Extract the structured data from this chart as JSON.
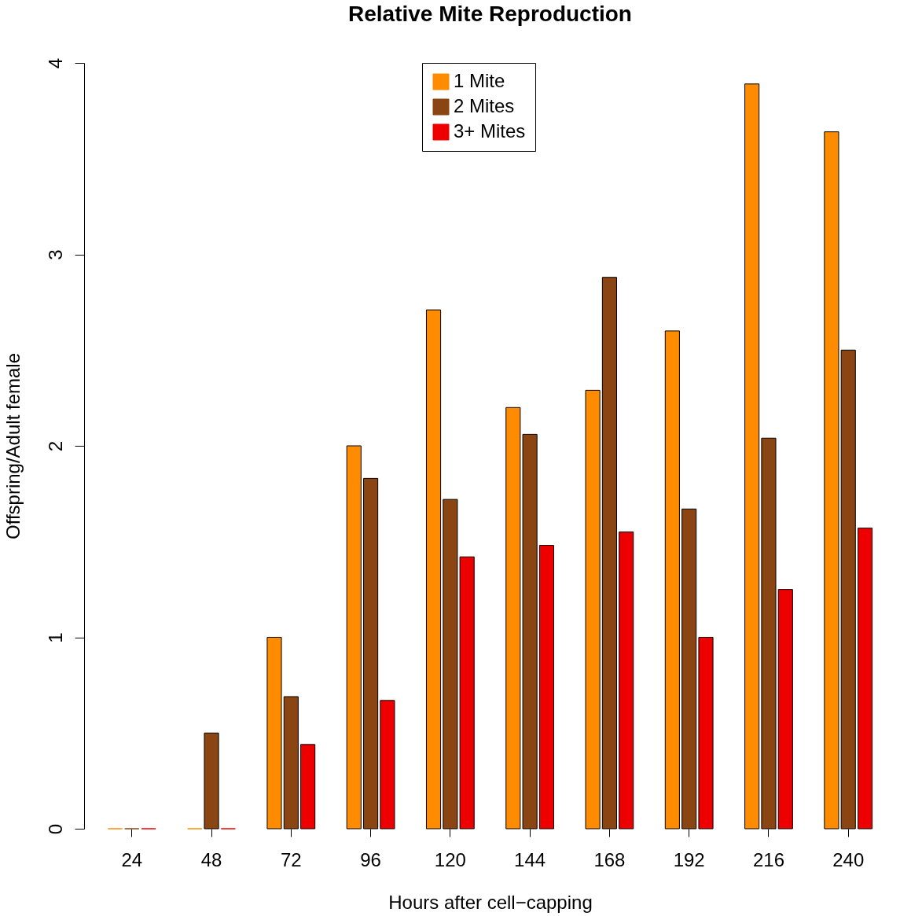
{
  "chart_data": {
    "type": "bar",
    "title": "Relative Mite Reproduction",
    "xlabel": "Hours after cell−capping",
    "ylabel": "Offspring/Adult female",
    "categories": [
      "24",
      "48",
      "72",
      "96",
      "120",
      "144",
      "168",
      "192",
      "216",
      "240"
    ],
    "series": [
      {
        "name": "1 Mite",
        "color": "#ff8c00",
        "values": [
          0,
          0,
          1.0,
          2.0,
          2.71,
          2.2,
          2.29,
          2.6,
          3.89,
          3.64
        ]
      },
      {
        "name": "2 Mites",
        "color": "#8b4513",
        "values": [
          0,
          0.5,
          0.69,
          1.83,
          1.72,
          2.06,
          2.88,
          1.67,
          2.04,
          2.5
        ]
      },
      {
        "name": "3+ Mites",
        "color": "#ee0000",
        "values": [
          0,
          0,
          0.44,
          0.67,
          1.42,
          1.48,
          1.55,
          1.0,
          1.25,
          1.57
        ]
      }
    ],
    "ylim": [
      0,
      4
    ],
    "yticks": [
      0,
      1,
      2,
      3,
      4
    ],
    "grid": false,
    "legend": "top"
  }
}
